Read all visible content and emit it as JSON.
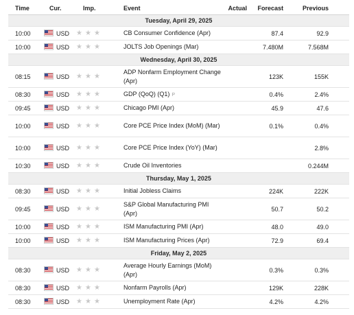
{
  "headers": {
    "time": "Time",
    "cur": "Cur.",
    "imp": "Imp.",
    "event": "Event",
    "actual": "Actual",
    "forecast": "Forecast",
    "previous": "Previous"
  },
  "dates": [
    "Tuesday, April 29, 2025",
    "Wednesday, April 30, 2025",
    "Thursday, May 1, 2025",
    "Friday, May 2, 2025"
  ],
  "rows": [
    {
      "time": "10:00",
      "cur": "USD",
      "event": "CB Consumer Confidence (Apr)",
      "forecast": "87.4",
      "previous": "92.9"
    },
    {
      "time": "10:00",
      "cur": "USD",
      "event": "JOLTS Job Openings (Mar)",
      "forecast": "7.480M",
      "previous": "7.568M"
    },
    {
      "time": "08:15",
      "cur": "USD",
      "event": "ADP Nonfarm Employment Change (Apr)",
      "forecast": "123K",
      "previous": "155K"
    },
    {
      "time": "08:30",
      "cur": "USD",
      "event": "GDP (QoQ) (Q1)",
      "flag": "P",
      "forecast": "0.4%",
      "previous": "2.4%"
    },
    {
      "time": "09:45",
      "cur": "USD",
      "event": "Chicago PMI (Apr)",
      "forecast": "45.9",
      "previous": "47.6"
    },
    {
      "time": "10:00",
      "cur": "USD",
      "event": "Core PCE Price Index (MoM) (Mar)",
      "forecast": "0.1%",
      "previous": "0.4%"
    },
    {
      "time": "10:00",
      "cur": "USD",
      "event": "Core PCE Price Index (YoY) (Mar)",
      "forecast": "",
      "previous": "2.8%"
    },
    {
      "time": "10:30",
      "cur": "USD",
      "event": "Crude Oil Inventories",
      "forecast": "",
      "previous": "0.244M"
    },
    {
      "time": "08:30",
      "cur": "USD",
      "event": "Initial Jobless Claims",
      "forecast": "224K",
      "previous": "222K"
    },
    {
      "time": "09:45",
      "cur": "USD",
      "event": "S&P Global Manufacturing PMI (Apr)",
      "forecast": "50.7",
      "previous": "50.2"
    },
    {
      "time": "10:00",
      "cur": "USD",
      "event": "ISM Manufacturing PMI (Apr)",
      "forecast": "48.0",
      "previous": "49.0"
    },
    {
      "time": "10:00",
      "cur": "USD",
      "event": "ISM Manufacturing Prices (Apr)",
      "forecast": "72.9",
      "previous": "69.4"
    },
    {
      "time": "08:30",
      "cur": "USD",
      "event": "Average Hourly Earnings (MoM) (Apr)",
      "forecast": "0.3%",
      "previous": "0.3%"
    },
    {
      "time": "08:30",
      "cur": "USD",
      "event": "Nonfarm Payrolls (Apr)",
      "forecast": "129K",
      "previous": "228K"
    },
    {
      "time": "08:30",
      "cur": "USD",
      "event": "Unemployment Rate (Apr)",
      "forecast": "4.2%",
      "previous": "4.2%"
    }
  ],
  "icons": {
    "flag": "us-flag-icon",
    "star": "star-icon"
  }
}
